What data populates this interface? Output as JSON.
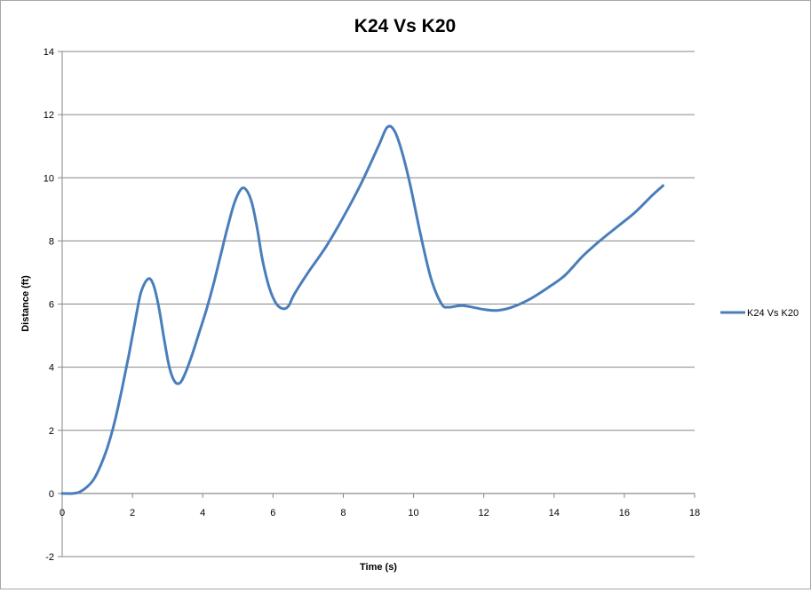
{
  "chart_data": {
    "type": "line",
    "title": "K24 Vs K20",
    "xlabel": "Time (s)",
    "ylabel": "Distance (ft)",
    "xlim": [
      0,
      18
    ],
    "ylim": [
      -2,
      14
    ],
    "x_ticks": [
      0,
      2,
      4,
      6,
      8,
      10,
      12,
      14,
      16,
      18
    ],
    "y_ticks": [
      -2,
      0,
      2,
      4,
      6,
      8,
      10,
      12,
      14
    ],
    "grid": "horizontal",
    "legend_position": "right",
    "series": [
      {
        "name": "K24 Vs K20",
        "color": "#4a7ebb",
        "points": [
          [
            0,
            0
          ],
          [
            0.3,
            0
          ],
          [
            0.5,
            0.05
          ],
          [
            0.7,
            0.2
          ],
          [
            0.9,
            0.45
          ],
          [
            1.1,
            0.9
          ],
          [
            1.3,
            1.5
          ],
          [
            1.5,
            2.3
          ],
          [
            1.7,
            3.3
          ],
          [
            1.9,
            4.4
          ],
          [
            2.1,
            5.6
          ],
          [
            2.25,
            6.4
          ],
          [
            2.45,
            6.8
          ],
          [
            2.6,
            6.6
          ],
          [
            2.75,
            5.9
          ],
          [
            2.9,
            4.9
          ],
          [
            3.05,
            4.0
          ],
          [
            3.2,
            3.55
          ],
          [
            3.35,
            3.5
          ],
          [
            3.5,
            3.8
          ],
          [
            3.7,
            4.4
          ],
          [
            3.9,
            5.1
          ],
          [
            4.1,
            5.8
          ],
          [
            4.3,
            6.6
          ],
          [
            4.5,
            7.5
          ],
          [
            4.7,
            8.4
          ],
          [
            4.9,
            9.2
          ],
          [
            5.1,
            9.65
          ],
          [
            5.25,
            9.6
          ],
          [
            5.4,
            9.2
          ],
          [
            5.55,
            8.4
          ],
          [
            5.7,
            7.4
          ],
          [
            5.9,
            6.5
          ],
          [
            6.1,
            6.0
          ],
          [
            6.3,
            5.85
          ],
          [
            6.45,
            5.95
          ],
          [
            6.6,
            6.3
          ],
          [
            7.0,
            7.0
          ],
          [
            7.5,
            7.8
          ],
          [
            8.0,
            8.75
          ],
          [
            8.5,
            9.8
          ],
          [
            9.0,
            11.0
          ],
          [
            9.25,
            11.6
          ],
          [
            9.45,
            11.5
          ],
          [
            9.65,
            10.9
          ],
          [
            9.9,
            9.8
          ],
          [
            10.2,
            8.2
          ],
          [
            10.5,
            6.8
          ],
          [
            10.8,
            6.0
          ],
          [
            11.0,
            5.9
          ],
          [
            11.4,
            5.95
          ],
          [
            12.0,
            5.83
          ],
          [
            12.4,
            5.8
          ],
          [
            12.8,
            5.9
          ],
          [
            13.3,
            6.15
          ],
          [
            13.8,
            6.5
          ],
          [
            14.3,
            6.9
          ],
          [
            14.8,
            7.5
          ],
          [
            15.3,
            8.0
          ],
          [
            15.8,
            8.45
          ],
          [
            16.3,
            8.9
          ],
          [
            16.8,
            9.45
          ],
          [
            17.1,
            9.75
          ]
        ]
      }
    ]
  }
}
